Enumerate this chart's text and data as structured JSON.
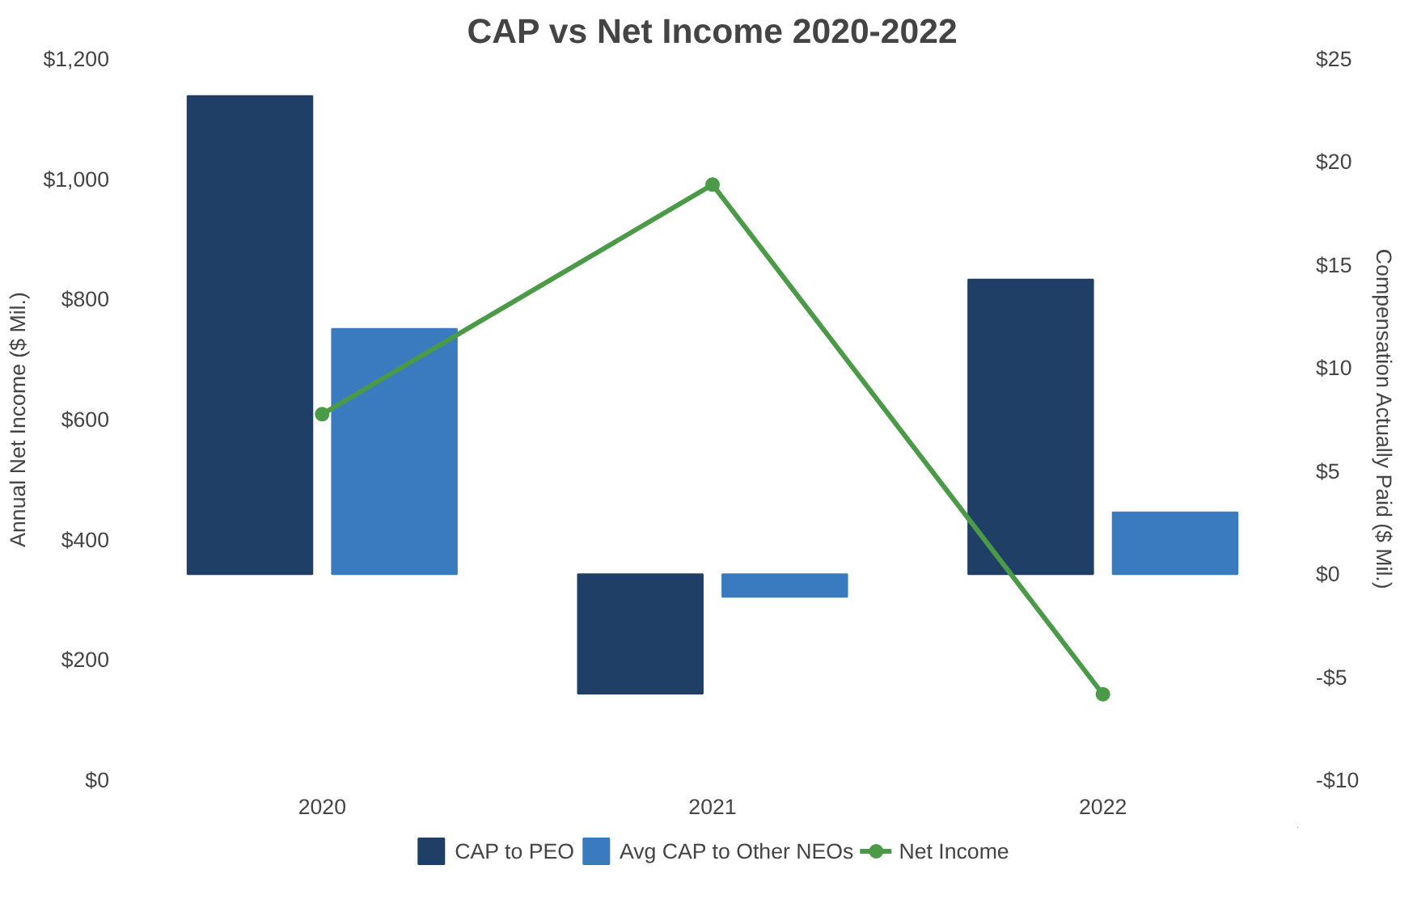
{
  "chart_data": {
    "type": "bar",
    "title": "CAP vs Net Income 2020-2022",
    "ylabel": "Annual Net Income ($ Mil.)",
    "y2label": "Compensation Actually Paid ($ Mil.)",
    "categories": [
      "2020",
      "2021",
      "2022"
    ],
    "series": [
      {
        "name": "CAP to PEO",
        "color": "#203f66",
        "values": [
          23.2,
          -5.8,
          14.3
        ],
        "axis": "y2"
      },
      {
        "name": "Avg CAP to Other NEOs",
        "color": "#3a7bbf",
        "values": [
          11.9,
          -1.1,
          3.0
        ],
        "axis": "y2"
      },
      {
        "name": "Net Income",
        "type": "line",
        "color": "#4a9a48",
        "values": [
          609,
          991,
          143
        ],
        "marker": "circle"
      }
    ],
    "ylim": [
      0,
      1200
    ],
    "yticks": [
      {
        "value": 0,
        "label": "$0"
      },
      {
        "value": 200,
        "label": "$200"
      },
      {
        "value": 400,
        "label": "$400"
      },
      {
        "value": 600,
        "label": "$600"
      },
      {
        "value": 800,
        "label": "$800"
      },
      {
        "value": 1000,
        "label": "$1,000"
      },
      {
        "value": 1200,
        "label": "$1,200"
      }
    ],
    "y2lim": [
      -10,
      25
    ],
    "y2ticks": [
      {
        "value": -10,
        "label": "-$10"
      },
      {
        "value": -5,
        "label": "-$5"
      },
      {
        "value": 0,
        "label": "$0"
      },
      {
        "value": 5,
        "label": "$5"
      },
      {
        "value": 10,
        "label": "$10"
      },
      {
        "value": 15,
        "label": "$15"
      },
      {
        "value": 20,
        "label": "$20"
      },
      {
        "value": 25,
        "label": "$25"
      }
    ],
    "grid": false,
    "legend": "bottom"
  }
}
